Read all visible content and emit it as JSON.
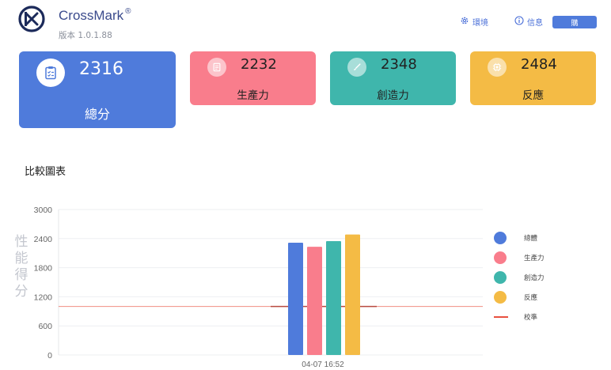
{
  "header": {
    "app_name": "CrossMark",
    "trademark": "®",
    "version": "版本 1.0.1.88",
    "settings_label": "環境",
    "info_label": "信息",
    "buy_label": "購"
  },
  "cards": {
    "total": {
      "score": "2316",
      "label": "總分",
      "color": "#4f7bdb",
      "icon": "clipboard-icon"
    },
    "productivity": {
      "score": "2232",
      "label": "生產力",
      "color": "#f97d8c",
      "icon": "document-icon"
    },
    "creativity": {
      "score": "2348",
      "label": "創造力",
      "color": "#3fb6ac",
      "icon": "brush-icon"
    },
    "responsiveness": {
      "score": "2484",
      "label": "反應",
      "color": "#f4bb45",
      "icon": "chip-icon"
    }
  },
  "section": {
    "title": "比較圖表"
  },
  "chart_data": {
    "type": "bar",
    "ylabel": "性能得分",
    "ylim": [
      0,
      3000
    ],
    "yticks": [
      "3000",
      "2400",
      "1800",
      "1200",
      "600",
      "0"
    ],
    "categories": [
      "04-07 16:52"
    ],
    "series": [
      {
        "name": "總體",
        "values": [
          2316
        ],
        "color": "#4f7bdb"
      },
      {
        "name": "生產力",
        "values": [
          2232
        ],
        "color": "#f97d8c"
      },
      {
        "name": "創造力",
        "values": [
          2348
        ],
        "color": "#3fb6ac"
      },
      {
        "name": "反應",
        "values": [
          2484
        ],
        "color": "#f4bb45"
      }
    ],
    "baseline": {
      "name": "校準",
      "value": 1000,
      "color": "#e8503f"
    },
    "grid": true,
    "legend": "right"
  }
}
